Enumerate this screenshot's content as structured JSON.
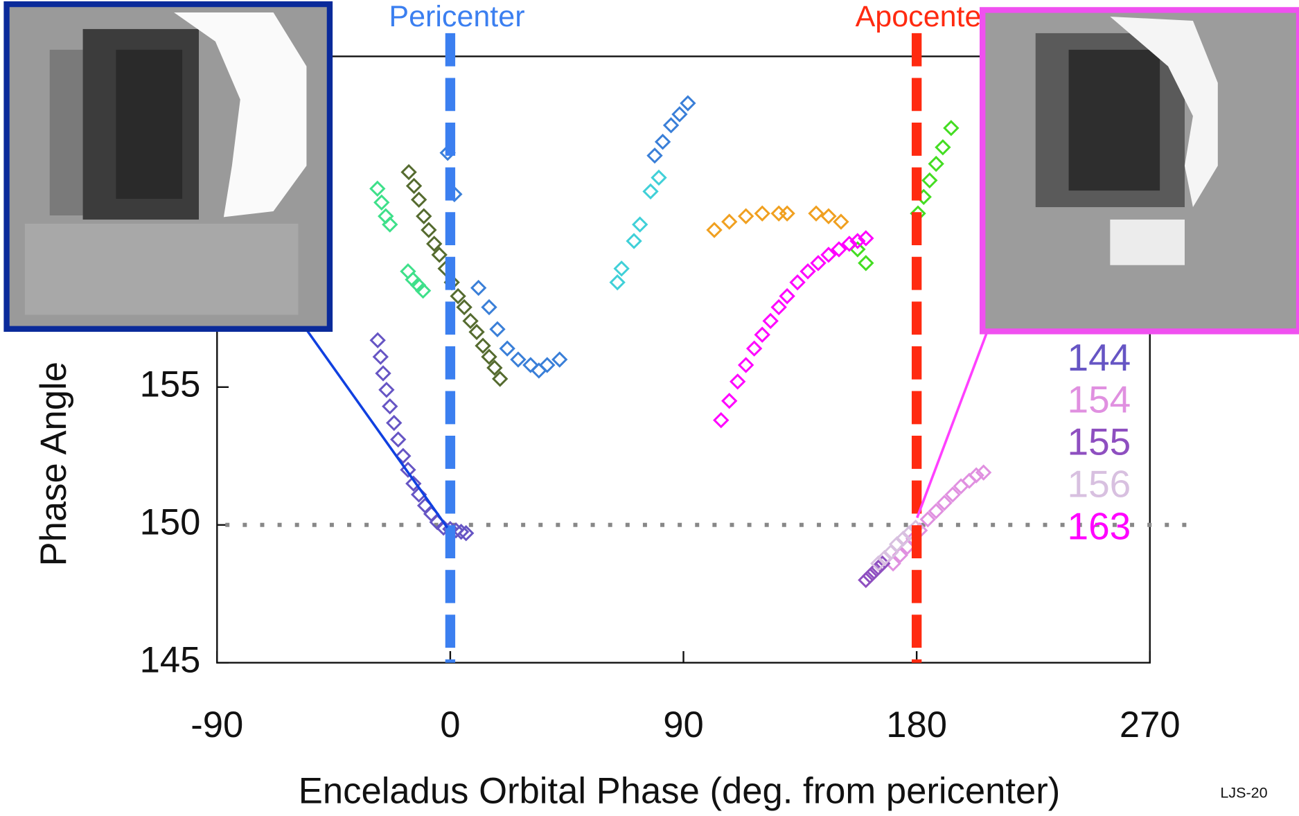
{
  "chart_data": {
    "type": "scatter",
    "x_label": "Enceladus Orbital Phase (deg. from pericenter)",
    "y_label": "Phase Angle",
    "xlim": [
      -90,
      270
    ],
    "xticks": [
      -90,
      0,
      90,
      180,
      270
    ],
    "ylim": [
      145,
      167
    ],
    "yticks": [
      145,
      150,
      155
    ],
    "hline": 150,
    "annotations": [
      {
        "text": "Pericenter",
        "x": 0,
        "color": "#3b7ff0"
      },
      {
        "text": "Apocenter",
        "x": 180,
        "color": "#ff2a10"
      }
    ],
    "series": [
      {
        "color": "#3a7fd8",
        "x": [
          -1,
          1.6,
          10.9,
          15,
          18.2,
          22,
          26.2,
          31,
          34.2,
          37.4,
          42.2,
          78.9,
          82,
          85.2,
          88.5,
          91.7
        ],
        "values": [
          163.5,
          162.0,
          158.6,
          157.9,
          157.1,
          156.4,
          156.0,
          155.8,
          155.6,
          155.8,
          156.0,
          163.4,
          163.9,
          164.5,
          164.9,
          165.3
        ]
      },
      {
        "color": "#40d0d8",
        "x": [
          64.5,
          66.1,
          70.9,
          73.2,
          77.3,
          80.5
        ],
        "values": [
          158.8,
          159.3,
          160.3,
          160.9,
          162.1,
          162.6
        ]
      },
      {
        "color": "#556b2f",
        "x": [
          -16,
          -14,
          -12.1,
          -10.2,
          -8.3,
          -6.2,
          -4.2,
          -1.8,
          0.6,
          3,
          5.4,
          7.8,
          10.2,
          12.6,
          15,
          17.1,
          19.2
        ],
        "values": [
          162.8,
          162.3,
          161.8,
          161.2,
          160.7,
          160.2,
          159.8,
          159.3,
          158.8,
          158.3,
          157.9,
          157.4,
          157.0,
          156.5,
          156.1,
          155.7,
          155.3
        ]
      },
      {
        "color": "#3ee08a",
        "x": [
          -28.1,
          -26.5,
          -24.9,
          -23.3,
          -16.3,
          -14.4,
          -12.4,
          -10.5
        ],
        "values": [
          162.2,
          161.7,
          161.2,
          160.9,
          159.2,
          158.9,
          158.7,
          158.5
        ]
      },
      {
        "color": "#f0a020",
        "x": [
          101.9,
          107.7,
          114.1,
          120.4,
          126.8,
          130,
          141.2,
          146,
          150.8
        ],
        "values": [
          160.7,
          161.0,
          161.2,
          161.3,
          161.3,
          161.3,
          161.3,
          161.2,
          161.0
        ]
      },
      {
        "color": "#44dd22",
        "x": [
          157.2,
          160.4,
          180.5,
          182.7,
          185,
          187.5,
          190.1,
          193.3
        ],
        "values": [
          160.0,
          159.5,
          161.3,
          161.9,
          162.5,
          163.1,
          163.7,
          164.4
        ]
      },
      {
        "name": "144",
        "color": "#6655c4",
        "x": [
          -28,
          -26.9,
          -25.9,
          -24.6,
          -23.3,
          -21.7,
          -20.1,
          -18.2,
          -16.3,
          -14.2,
          -12.1,
          -9.7,
          -7.3,
          -5,
          -2.6,
          0,
          2.2,
          4.2,
          6.1
        ],
        "values": [
          156.7,
          156.1,
          155.5,
          154.9,
          154.3,
          153.7,
          153.1,
          152.5,
          152.0,
          151.5,
          151.1,
          150.7,
          150.4,
          150.1,
          149.9,
          149.85,
          149.8,
          149.75,
          149.7
        ]
      },
      {
        "name": "154",
        "color": "#e090e0",
        "x": [
          170.9,
          173.6,
          176.4,
          178.8,
          181.2,
          184.3,
          187.5,
          190.7,
          193.9,
          197.1,
          200.3,
          203,
          205.8
        ],
        "values": [
          148.6,
          148.9,
          149.2,
          149.5,
          149.8,
          150.2,
          150.5,
          150.8,
          151.1,
          151.4,
          151.6,
          151.8,
          151.9
        ]
      },
      {
        "name": "155",
        "color": "#8e4fc0",
        "x": [
          160.4,
          162,
          163.6,
          165.2,
          166.8
        ],
        "values": [
          148.0,
          148.15,
          148.3,
          148.45,
          148.6
        ]
      },
      {
        "name": "156",
        "color": "#d8c0e0",
        "x": [
          165.2,
          167.6,
          170,
          172.4,
          174.8,
          177.2,
          179.6
        ],
        "values": [
          148.6,
          148.8,
          149.0,
          149.3,
          149.5,
          149.7,
          149.9
        ]
      },
      {
        "name": "163",
        "color": "#ff00ff",
        "x": [
          104.5,
          107.7,
          110.9,
          114.1,
          117.3,
          120.4,
          123.6,
          126.8,
          130,
          134,
          138,
          142,
          146,
          150,
          154,
          157.2,
          160.4
        ],
        "values": [
          153.8,
          154.5,
          155.2,
          155.8,
          156.4,
          156.9,
          157.4,
          157.9,
          158.3,
          158.8,
          159.2,
          159.5,
          159.8,
          160.0,
          160.2,
          160.3,
          160.4
        ]
      }
    ]
  },
  "footer": "LJS-20"
}
